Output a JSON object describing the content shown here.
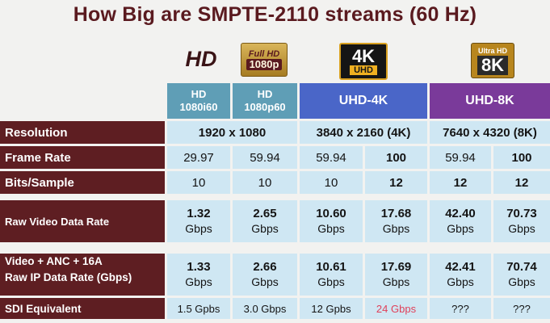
{
  "title": "How Big are SMPTE-2110 streams (60 Hz)",
  "logos": {
    "hd": "HD",
    "fullhd_top": "Full HD",
    "fullhd_bottom": "1080p",
    "uhd4k_top": "4K",
    "uhd4k_bottom": "UHD",
    "uhd8k_top": "Ultra HD",
    "uhd8k_bottom": "8K"
  },
  "headers": {
    "hd1080i60_line1": "HD",
    "hd1080i60_line2": "1080i60",
    "hd1080p60_line1": "HD",
    "hd1080p60_line2": "1080p60",
    "uhd4k": "UHD-4K",
    "uhd8k": "UHD-8K"
  },
  "rows": {
    "resolution": {
      "label": "Resolution",
      "hd": "1920 x 1080",
      "uhd4k": "3840 x 2160 (4K)",
      "uhd8k": "7640 x 4320  (8K)"
    },
    "frame_rate": {
      "label": "Frame Rate",
      "values": [
        "29.97",
        "59.94",
        "59.94",
        "100",
        "59.94",
        "100"
      ]
    },
    "bits_sample": {
      "label": "Bits/Sample",
      "values": [
        "10",
        "10",
        "10",
        "12",
        "12",
        "12"
      ]
    },
    "raw_video": {
      "label": "Raw Video Data Rate",
      "values": [
        "1.32",
        "2.65",
        "10.60",
        "17.68",
        "42.40",
        "70.73"
      ],
      "unit": "Gbps"
    },
    "raw_ip": {
      "label_line1": "Video + ANC + 16A",
      "label_line2": "Raw IP Data Rate (Gbps)",
      "values": [
        "1.33",
        "2.66",
        "10.61",
        "17.69",
        "42.41",
        "70.74"
      ],
      "unit": "Gbps"
    },
    "sdi": {
      "label": "SDI Equivalent",
      "values": [
        "1.5 Gpbs",
        "3.0 Gbps",
        "12 Gpbs",
        "24 Gbps",
        "???",
        "???"
      ]
    }
  },
  "colors": {
    "label_bg": "#5e1e22",
    "hd_header": "#5f9eb6",
    "uhd4k_header": "#4a66c8",
    "uhd8k_header": "#7a3a9a",
    "cell_bg": "#cfe7f3",
    "highlight": "#e0405a"
  }
}
